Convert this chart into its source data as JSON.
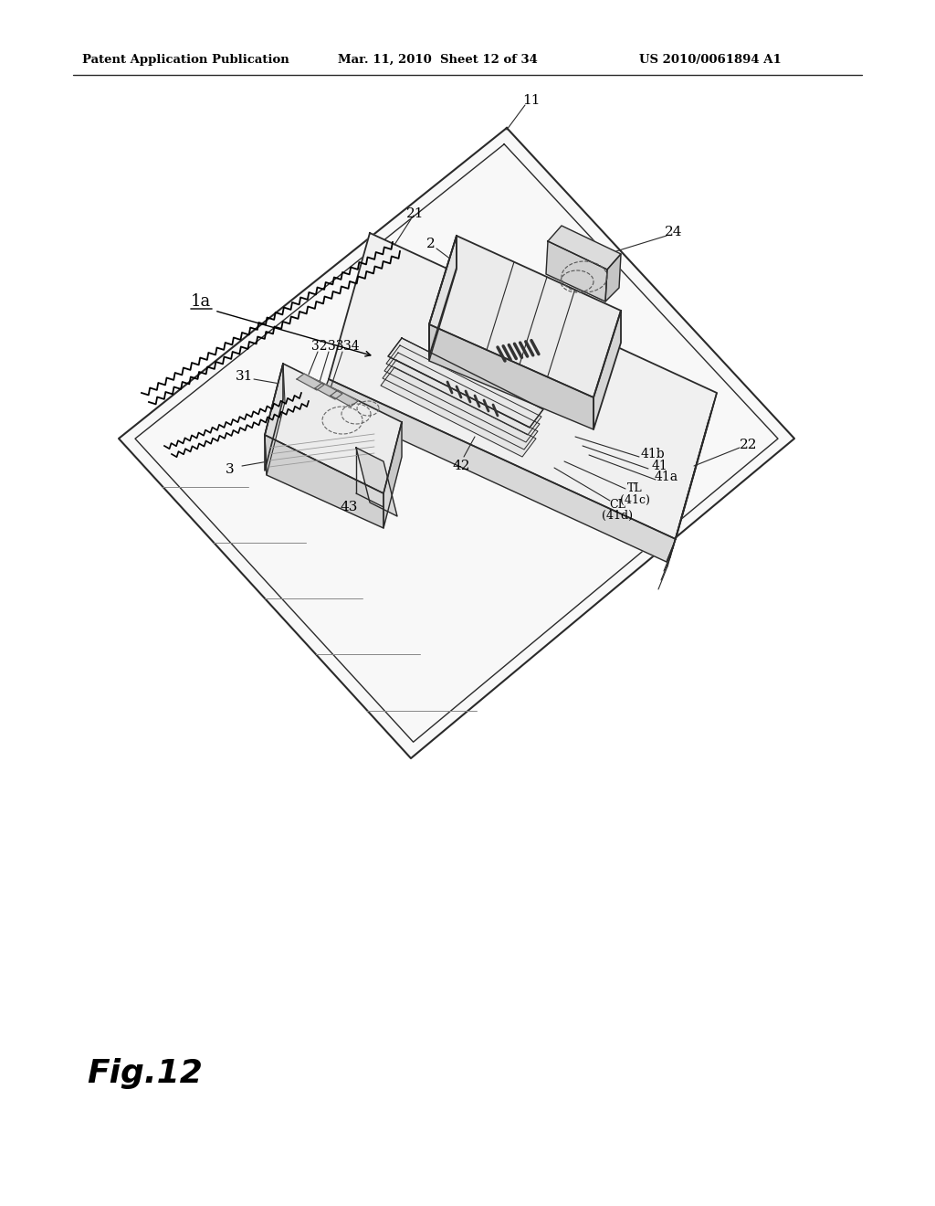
{
  "bg_color": "#ffffff",
  "header_left": "Patent Application Publication",
  "header_mid": "Mar. 11, 2010  Sheet 12 of 34",
  "header_right": "US 2010/0061894 A1",
  "fig_label": "Fig.12",
  "line_color": "#2a2a2a",
  "fill_light": "#f5f5f5",
  "fill_mid": "#e8e8e8",
  "fill_dark": "#d8d8d8"
}
